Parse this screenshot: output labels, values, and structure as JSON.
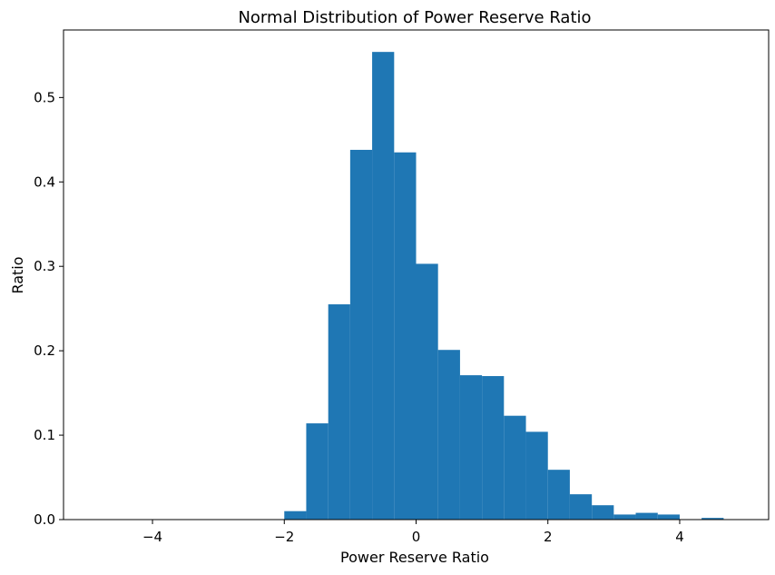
{
  "chart_data": {
    "type": "bar",
    "title": "Normal Distribution of Power Reserve Ratio",
    "xlabel": "Power Reserve Ratio",
    "ylabel": "Ratio",
    "xlim": [
      -5.35,
      5.35
    ],
    "ylim": [
      0,
      0.58
    ],
    "xticks": [
      -4,
      -2,
      0,
      2,
      4
    ],
    "xtick_labels": [
      "−4",
      "−2",
      "0",
      "2",
      "4"
    ],
    "yticks": [
      0.0,
      0.1,
      0.2,
      0.3,
      0.4,
      0.5
    ],
    "ytick_labels": [
      "0.0",
      "0.1",
      "0.2",
      "0.3",
      "0.4",
      "0.5"
    ],
    "grid": false,
    "bar_color": "#1f77b4",
    "bins": [
      {
        "x0": -2.0,
        "x1": -1.667,
        "value": 0.01
      },
      {
        "x0": -1.667,
        "x1": -1.333,
        "value": 0.114
      },
      {
        "x0": -1.333,
        "x1": -1.0,
        "value": 0.255
      },
      {
        "x0": -1.0,
        "x1": -0.667,
        "value": 0.438
      },
      {
        "x0": -0.667,
        "x1": -0.333,
        "value": 0.554
      },
      {
        "x0": -0.333,
        "x1": 0.0,
        "value": 0.435
      },
      {
        "x0": 0.0,
        "x1": 0.333,
        "value": 0.303
      },
      {
        "x0": 0.333,
        "x1": 0.667,
        "value": 0.201
      },
      {
        "x0": 0.667,
        "x1": 1.0,
        "value": 0.171
      },
      {
        "x0": 1.0,
        "x1": 1.333,
        "value": 0.17
      },
      {
        "x0": 1.333,
        "x1": 1.667,
        "value": 0.123
      },
      {
        "x0": 1.667,
        "x1": 2.0,
        "value": 0.104
      },
      {
        "x0": 2.0,
        "x1": 2.333,
        "value": 0.059
      },
      {
        "x0": 2.333,
        "x1": 2.667,
        "value": 0.03
      },
      {
        "x0": 2.667,
        "x1": 3.0,
        "value": 0.017
      },
      {
        "x0": 3.0,
        "x1": 3.333,
        "value": 0.006
      },
      {
        "x0": 3.333,
        "x1": 3.667,
        "value": 0.008
      },
      {
        "x0": 3.667,
        "x1": 4.0,
        "value": 0.006
      },
      {
        "x0": 4.333,
        "x1": 4.667,
        "value": 0.002
      }
    ]
  }
}
